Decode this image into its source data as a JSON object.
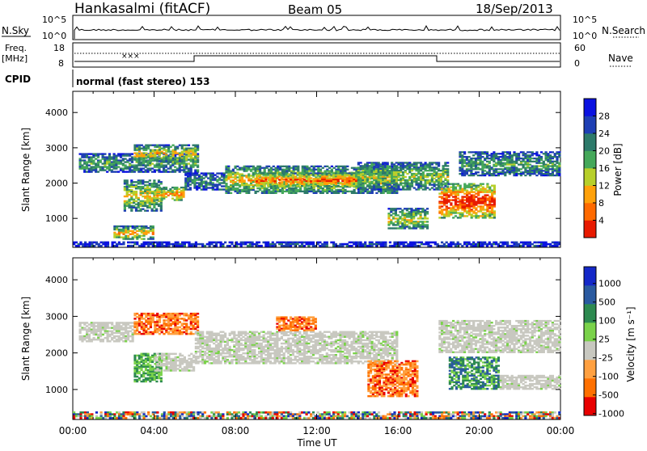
{
  "header": {
    "station": "Hankasalmi (fitACF)",
    "beam": "Beam 05",
    "date": "18/Sep/2013"
  },
  "status_panels": {
    "nsky_label": "N.Sky",
    "nsearch_label": "N.Search",
    "nsky_ticks": [
      "10^5",
      "10^0"
    ],
    "nsearch_ticks": [
      "10^5",
      "10^0"
    ],
    "freq_label_line1": "Freq.",
    "freq_label_line2": "[MHz]",
    "freq_ticks": [
      "18",
      "8"
    ],
    "nave_label": "Nave",
    "nave_ticks": [
      "60",
      "0"
    ],
    "cpid_label": "CPID",
    "cpid_value": "normal (fast stereo) 153"
  },
  "chart_data": [
    {
      "type": "heatmap",
      "name": "power",
      "ylabel": "Slant Range [km]",
      "yticks": [
        "4000",
        "3000",
        "2000",
        "1000"
      ],
      "ylim": [
        180,
        4600
      ],
      "xlim": [
        0,
        24
      ],
      "colorbar": {
        "label": "Power [dB]",
        "ticks": [
          "28",
          "24",
          "20",
          "16",
          "12",
          "8",
          "4"
        ],
        "colors": [
          "#0a12e0",
          "#1e3fb4",
          "#2d7a6a",
          "#45a85a",
          "#b7cf2a",
          "#ffa10a",
          "#ff6a00",
          "#e81a00"
        ]
      },
      "regions": [
        {
          "x": [
            0.3,
            6.2
          ],
          "y": [
            2300,
            2850
          ],
          "level": 0.35
        },
        {
          "x": [
            3.0,
            6.2
          ],
          "y": [
            2600,
            3100
          ],
          "level": 0.55
        },
        {
          "x": [
            2.5,
            4.4
          ],
          "y": [
            1200,
            2100
          ],
          "level": 0.5
        },
        {
          "x": [
            4.0,
            5.5
          ],
          "y": [
            1500,
            1900
          ],
          "level": 0.65
        },
        {
          "x": [
            5.5,
            7.5
          ],
          "y": [
            1800,
            2300
          ],
          "level": 0.3
        },
        {
          "x": [
            7.5,
            16.0
          ],
          "y": [
            1700,
            2500
          ],
          "level": 0.55
        },
        {
          "x": [
            9.0,
            14.0
          ],
          "y": [
            1900,
            2300
          ],
          "level": 0.75
        },
        {
          "x": [
            14.0,
            18.5
          ],
          "y": [
            1800,
            2600
          ],
          "level": 0.45
        },
        {
          "x": [
            18.0,
            20.8
          ],
          "y": [
            1000,
            2000
          ],
          "level": 0.85
        },
        {
          "x": [
            19.0,
            24.0
          ],
          "y": [
            2200,
            2900
          ],
          "level": 0.35
        },
        {
          "x": [
            15.5,
            17.5
          ],
          "y": [
            700,
            1300
          ],
          "level": 0.5
        },
        {
          "x": [
            2.0,
            4.0
          ],
          "y": [
            400,
            800
          ],
          "level": 0.6
        },
        {
          "x": [
            0.0,
            24.0
          ],
          "y": [
            200,
            350
          ],
          "level": 0.15
        }
      ]
    },
    {
      "type": "heatmap",
      "name": "velocity",
      "ylabel": "Slant Range [km]",
      "yticks": [
        "4000",
        "3000",
        "2000",
        "1000"
      ],
      "ylim": [
        180,
        4600
      ],
      "xlim": [
        0,
        24
      ],
      "xlabel": "Time UT",
      "xticks": [
        "00:00",
        "04:00",
        "08:00",
        "12:00",
        "16:00",
        "20:00",
        "00:00"
      ],
      "colorbar": {
        "label": "Velocity [m s⁻¹]",
        "ticks": [
          "1000",
          "500",
          "100",
          "25",
          "-25",
          "-100",
          "-500",
          "-1000"
        ],
        "colors": [
          "#1428c8",
          "#2a5aa0",
          "#2d8a50",
          "#7ad24a",
          "#c8c8c0",
          "#ffa040",
          "#ff7000",
          "#e80000"
        ]
      },
      "regions": [
        {
          "x": [
            0.3,
            3.0
          ],
          "y": [
            2300,
            2850
          ],
          "level": "gray"
        },
        {
          "x": [
            3.0,
            6.2
          ],
          "y": [
            2500,
            3100
          ],
          "level": "orange"
        },
        {
          "x": [
            3.0,
            4.4
          ],
          "y": [
            1200,
            2000
          ],
          "level": "green"
        },
        {
          "x": [
            4.0,
            6.0
          ],
          "y": [
            1500,
            2000
          ],
          "level": "gray"
        },
        {
          "x": [
            6.0,
            16.0
          ],
          "y": [
            1700,
            2600
          ],
          "level": "gray"
        },
        {
          "x": [
            10.0,
            12.0
          ],
          "y": [
            2600,
            3000
          ],
          "level": "orange"
        },
        {
          "x": [
            14.5,
            17.0
          ],
          "y": [
            800,
            1800
          ],
          "level": "orange"
        },
        {
          "x": [
            18.5,
            21.0
          ],
          "y": [
            1000,
            1900
          ],
          "level": "darkgreen"
        },
        {
          "x": [
            18.0,
            24.0
          ],
          "y": [
            2000,
            2900
          ],
          "level": "gray"
        },
        {
          "x": [
            21.0,
            24.0
          ],
          "y": [
            1000,
            1400
          ],
          "level": "gray"
        },
        {
          "x": [
            0.0,
            24.0
          ],
          "y": [
            200,
            400
          ],
          "level": "mixed"
        }
      ]
    }
  ]
}
